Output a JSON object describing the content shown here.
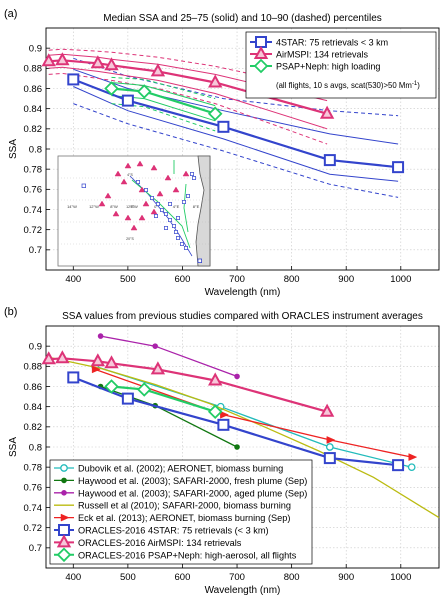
{
  "figure": {
    "panel_a_tag": "(a)",
    "panel_b_tag": "(b)"
  },
  "chart_data": [
    {
      "type": "line",
      "title": "Median SSA and 25–75 (solid) and 10–90 (dashed) percentiles",
      "xlabel": "Wavelength (nm)",
      "ylabel": "SSA",
      "xlim": [
        350,
        1070
      ],
      "ylim": [
        0.68,
        0.92
      ],
      "xticks": [
        400,
        500,
        600,
        700,
        800,
        900,
        1000
      ],
      "yticks": [
        0.7,
        0.72,
        0.74,
        0.76,
        0.78,
        0.8,
        0.82,
        0.84,
        0.86,
        0.88,
        0.9
      ],
      "grid": true,
      "legend_position": "top-right",
      "series": [
        {
          "name": "4STAR: 75 retrievals < 3 km",
          "color": "#3344cc",
          "marker": "square",
          "x": [
            400,
            500,
            675,
            870,
            995
          ],
          "y": [
            0.869,
            0.848,
            0.822,
            0.789,
            0.782
          ],
          "p25": [
            0.862,
            0.838,
            0.81,
            0.775,
            0.768
          ],
          "p75": [
            0.879,
            0.86,
            0.838,
            0.815,
            0.805
          ],
          "p10": [
            0.845,
            0.825,
            0.798,
            0.765,
            0.752
          ],
          "p90": [
            0.89,
            0.872,
            0.85,
            0.838,
            0.833
          ]
        },
        {
          "name": "AirMSPI: 134 retrievals",
          "color": "#dd3377",
          "marker": "triangle",
          "x": [
            355,
            380,
            445,
            470,
            555,
            660,
            865
          ],
          "y": [
            0.887,
            0.888,
            0.885,
            0.883,
            0.877,
            0.866,
            0.835
          ],
          "p25": [
            0.88,
            0.881,
            0.877,
            0.875,
            0.868,
            0.855,
            0.82
          ],
          "p75": [
            0.893,
            0.894,
            0.891,
            0.889,
            0.884,
            0.874,
            0.848
          ],
          "p10": [
            0.874,
            0.875,
            0.87,
            0.868,
            0.86,
            0.845,
            0.805
          ],
          "p90": [
            0.898,
            0.899,
            0.897,
            0.896,
            0.891,
            0.882,
            0.858
          ]
        },
        {
          "name": "PSAP+Neph: high loading",
          "color": "#22cc66",
          "marker": "diamond",
          "x": [
            470,
            530,
            660
          ],
          "y": [
            0.86,
            0.857,
            0.835
          ],
          "p25": [
            0.853,
            0.85,
            0.828
          ],
          "p75": [
            0.866,
            0.863,
            0.843
          ],
          "p10": [
            0.845,
            0.842,
            0.818
          ],
          "p90": [
            0.871,
            0.869,
            0.85
          ]
        }
      ],
      "legend_note": "(all flights, 10 s avgs, scat(530)>50 Mm",
      "legend_note_sup": "-1",
      "legend_note_end": ")",
      "inset_map": {
        "lon_labels": [
          "14°W",
          "12°W",
          "8°W",
          "4°W",
          "0°",
          "4°E",
          "8°E",
          "12°E"
        ],
        "lat_labels": [
          "0°",
          "4°S",
          "8°S",
          "12°S",
          "16°S",
          "20°S",
          "24°S"
        ]
      }
    },
    {
      "type": "line",
      "title": "SSA values from previous studies compared with ORACLES instrument averages",
      "xlabel": "Wavelength (nm)",
      "ylabel": "SSA",
      "xlim": [
        350,
        1070
      ],
      "ylim": [
        0.68,
        0.92
      ],
      "xticks": [
        400,
        500,
        600,
        700,
        800,
        900,
        1000
      ],
      "yticks": [
        0.7,
        0.72,
        0.74,
        0.76,
        0.78,
        0.8,
        0.82,
        0.84,
        0.86,
        0.88,
        0.9
      ],
      "grid": true,
      "legend_position": "bottom-left",
      "series": [
        {
          "name": "Dubovik et al. (2002); AERONET, biomass burning",
          "color": "#22bbbb",
          "marker": "circle",
          "x": [
            440,
            670,
            870,
            1020
          ],
          "y": [
            0.88,
            0.84,
            0.8,
            0.78
          ]
        },
        {
          "name": "Haywood et al. (2003); SAFARI-2000, fresh plume (Sep)",
          "color": "#117711",
          "marker": "dot",
          "x": [
            450,
            550,
            700
          ],
          "y": [
            0.86,
            0.841,
            0.8
          ]
        },
        {
          "name": "Haywood et al. (2003); SAFARI-2000, aged plume (Sep)",
          "color": "#aa22aa",
          "marker": "dot",
          "x": [
            450,
            550,
            700
          ],
          "y": [
            0.91,
            0.9,
            0.87
          ]
        },
        {
          "name": "Russell et al (2010); SAFARI-2000, biomass burning",
          "color": "#bbbb11",
          "marker": "none",
          "x": [
            355,
            450,
            550,
            650,
            750,
            850,
            950,
            1070
          ],
          "y": [
            0.889,
            0.878,
            0.862,
            0.843,
            0.82,
            0.796,
            0.77,
            0.73
          ]
        },
        {
          "name": "Eck et al. (2013); AERONET, biomass burning (Sep)",
          "color": "#ee2222",
          "marker": "arrow",
          "x": [
            440,
            675,
            870,
            1020
          ],
          "y": [
            0.877,
            0.832,
            0.807,
            0.79
          ]
        },
        {
          "name": "ORACLES-2016 4STAR: 75 retrievals (< 3 km)",
          "color": "#3344cc",
          "marker": "square",
          "x": [
            400,
            500,
            675,
            870,
            995
          ],
          "y": [
            0.869,
            0.848,
            0.822,
            0.789,
            0.782
          ]
        },
        {
          "name": "ORACLES-2016 AirMSPI: 134 retrievals",
          "color": "#dd3377",
          "marker": "triangle",
          "x": [
            355,
            380,
            445,
            470,
            555,
            660,
            865
          ],
          "y": [
            0.887,
            0.888,
            0.885,
            0.883,
            0.877,
            0.866,
            0.835
          ]
        },
        {
          "name": "ORACLES-2016 PSAP+Neph: high-aerosol, all flights",
          "color": "#22cc66",
          "marker": "diamond",
          "x": [
            470,
            530,
            660
          ],
          "y": [
            0.86,
            0.857,
            0.835
          ]
        }
      ]
    }
  ]
}
